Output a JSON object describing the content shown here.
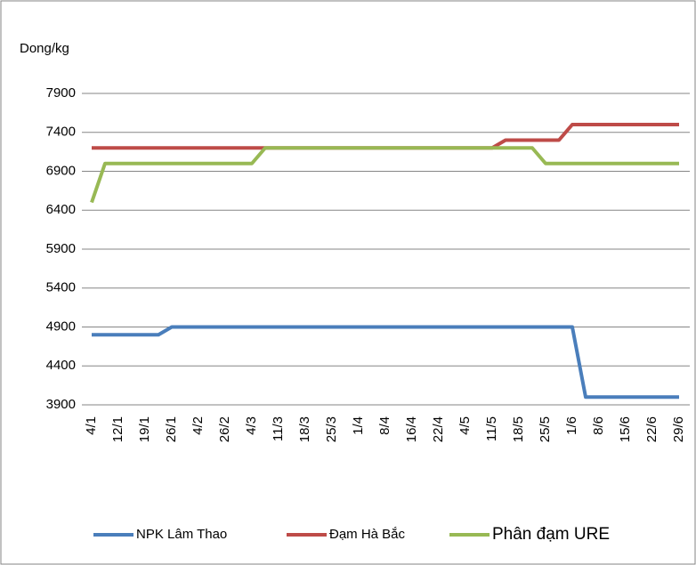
{
  "chart_data": {
    "type": "line",
    "y_label": "Dong/kg",
    "categories": [
      "4/1",
      null,
      "12/1",
      null,
      "19/1",
      null,
      "26/1",
      null,
      "4/2",
      null,
      "26/2",
      null,
      "4/3",
      null,
      "11/3",
      null,
      "18/3",
      null,
      "25/3",
      null,
      "1/4",
      null,
      "8/4",
      null,
      "16/4",
      null,
      "22/4",
      null,
      "4/5",
      null,
      "11/5",
      null,
      "18/5",
      null,
      "25/5",
      null,
      "1/6",
      null,
      "8/6",
      null,
      "15/6",
      null,
      "22/6",
      null,
      "29/6"
    ],
    "series": [
      {
        "name": "NPK Lâm Thao",
        "color": "#4a7ebb",
        "values": [
          4800,
          4800,
          4800,
          4800,
          4800,
          4800,
          4900,
          4900,
          4900,
          4900,
          4900,
          4900,
          4900,
          4900,
          4900,
          4900,
          4900,
          4900,
          4900,
          4900,
          4900,
          4900,
          4900,
          4900,
          4900,
          4900,
          4900,
          4900,
          4900,
          4900,
          4900,
          4900,
          4900,
          4900,
          4900,
          4900,
          4900,
          4000,
          4000,
          4000,
          4000,
          4000,
          4000,
          4000,
          4000
        ]
      },
      {
        "name": "Đạm Hà Bắc",
        "color": "#be4b48",
        "values": [
          7200,
          7200,
          7200,
          7200,
          7200,
          7200,
          7200,
          7200,
          7200,
          7200,
          7200,
          7200,
          7200,
          7200,
          7200,
          7200,
          7200,
          7200,
          7200,
          7200,
          7200,
          7200,
          7200,
          7200,
          7200,
          7200,
          7200,
          7200,
          7200,
          7200,
          7200,
          7300,
          7300,
          7300,
          7300,
          7300,
          7500,
          7500,
          7500,
          7500,
          7500,
          7500,
          7500,
          7500,
          7500
        ]
      },
      {
        "name": "Phân đạm URE",
        "color": "#98b954",
        "values": [
          6500,
          7000,
          7000,
          7000,
          7000,
          7000,
          7000,
          7000,
          7000,
          7000,
          7000,
          7000,
          7000,
          7200,
          7200,
          7200,
          7200,
          7200,
          7200,
          7200,
          7200,
          7200,
          7200,
          7200,
          7200,
          7200,
          7200,
          7200,
          7200,
          7200,
          7200,
          7200,
          7200,
          7200,
          7000,
          7000,
          7000,
          7000,
          7000,
          7000,
          7000,
          7000,
          7000,
          7000,
          7000
        ]
      }
    ],
    "ylim": [
      3900,
      7900
    ],
    "yticks": [
      3900,
      4400,
      4900,
      5400,
      5900,
      6400,
      6900,
      7400,
      7900
    ],
    "grid": true,
    "legend": "bottom"
  }
}
